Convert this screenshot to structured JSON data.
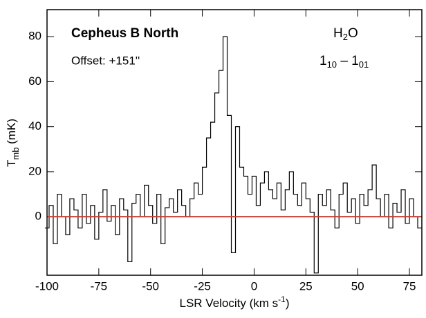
{
  "chart_data": {
    "type": "step",
    "title": "Cepheus B North",
    "subtitle": "Offset: +151''",
    "annotation_molecule": {
      "text": "H",
      "sub": "2",
      "rest": "O"
    },
    "annotation_transition": {
      "text": "1",
      "sub": "10",
      "mid": " – 1",
      "sub2": "01"
    },
    "y_label": {
      "text": "T",
      "sub": "mb",
      "rest": " (mK)"
    },
    "x_label": {
      "text": "LSR Velocity (km s",
      "sup": "-1",
      "rest": ")"
    },
    "x": [
      -100,
      -98,
      -96,
      -94,
      -92,
      -90,
      -88,
      -86,
      -84,
      -82,
      -80,
      -78,
      -76,
      -74,
      -72,
      -70,
      -68,
      -66,
      -64,
      -62,
      -60,
      -58,
      -56,
      -54,
      -52,
      -50,
      -48,
      -46,
      -44,
      -42,
      -40,
      -38,
      -36,
      -34,
      -32,
      -30,
      -28,
      -26,
      -24,
      -22,
      -20,
      -18,
      -16,
      -14,
      -12,
      -10,
      -8,
      -6,
      -4,
      -2,
      0,
      2,
      4,
      6,
      8,
      10,
      12,
      14,
      16,
      18,
      20,
      22,
      24,
      26,
      28,
      30,
      32,
      34,
      36,
      38,
      40,
      42,
      44,
      46,
      48,
      50,
      52,
      54,
      56,
      58,
      60,
      62,
      64,
      66,
      68,
      70,
      72,
      74,
      76,
      78,
      80
    ],
    "series": [
      {
        "name": "H2O",
        "color": "#000000",
        "values": [
          -5,
          5,
          -12,
          10,
          0,
          -8,
          8,
          3,
          -5,
          10,
          -3,
          5,
          -10,
          2,
          12,
          -2,
          5,
          -8,
          8,
          3,
          -20,
          6,
          10,
          0,
          14,
          5,
          -3,
          10,
          -12,
          4,
          8,
          2,
          12,
          5,
          0,
          8,
          15,
          10,
          22,
          35,
          42,
          55,
          65,
          80,
          45,
          -16,
          40,
          22,
          18,
          10,
          18,
          5,
          15,
          20,
          12,
          8,
          15,
          3,
          12,
          20,
          10,
          5,
          15,
          8,
          2,
          -25,
          10,
          5,
          12,
          3,
          -5,
          10,
          15,
          2,
          8,
          -3,
          10,
          5,
          12,
          23,
          8,
          0,
          10,
          -5,
          6,
          2,
          12,
          -3,
          8,
          0,
          -5
        ]
      }
    ],
    "zero_line": {
      "value": 0,
      "color": "#ff2a1a"
    },
    "xlim": [
      -100,
      81
    ],
    "ylim": [
      -26,
      92
    ],
    "xticks": [
      -100,
      -75,
      -50,
      -25,
      0,
      25,
      50,
      75
    ],
    "yticks": [
      0,
      20,
      40,
      60,
      80
    ]
  }
}
